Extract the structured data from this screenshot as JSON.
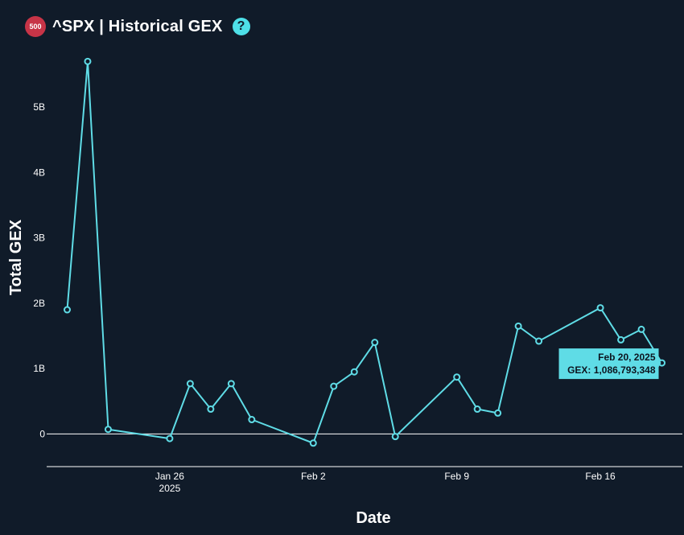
{
  "header": {
    "badge": "500",
    "title": "^SPX | Historical GEX",
    "help": "?"
  },
  "colors": {
    "background": "#101b29",
    "line": "#5fdce6",
    "badge": "#c73447",
    "tooltip": "#5fdce6"
  },
  "chart_data": {
    "type": "line",
    "xlabel": "Date",
    "ylabel": "Total GEX",
    "x_ticks": [
      {
        "date": "2025-01-26",
        "label": "Jan 26",
        "sublabel": "2025"
      },
      {
        "date": "2025-02-02",
        "label": "Feb 2",
        "sublabel": ""
      },
      {
        "date": "2025-02-09",
        "label": "Feb 9",
        "sublabel": ""
      },
      {
        "date": "2025-02-16",
        "label": "Feb 16",
        "sublabel": ""
      }
    ],
    "y_ticks": [
      {
        "value": 0,
        "label": "0"
      },
      {
        "value": 1000000000,
        "label": "1B"
      },
      {
        "value": 2000000000,
        "label": "2B"
      },
      {
        "value": 3000000000,
        "label": "3B"
      },
      {
        "value": 4000000000,
        "label": "4B"
      },
      {
        "value": 5000000000,
        "label": "5B"
      }
    ],
    "x_range": [
      "2025-01-20",
      "2025-02-20"
    ],
    "ylim": [
      -500000000,
      6000000000
    ],
    "series": [
      {
        "points": [
          {
            "x": "2025-01-21",
            "y": 1900000000
          },
          {
            "x": "2025-01-22",
            "y": 5700000000
          },
          {
            "x": "2025-01-23",
            "y": 70000000
          },
          {
            "x": "2025-01-26",
            "y": -70000000
          },
          {
            "x": "2025-01-27",
            "y": 770000000
          },
          {
            "x": "2025-01-28",
            "y": 380000000
          },
          {
            "x": "2025-01-29",
            "y": 770000000
          },
          {
            "x": "2025-01-30",
            "y": 220000000
          },
          {
            "x": "2025-02-02",
            "y": -140000000
          },
          {
            "x": "2025-02-03",
            "y": 730000000
          },
          {
            "x": "2025-02-04",
            "y": 950000000
          },
          {
            "x": "2025-02-05",
            "y": 1400000000
          },
          {
            "x": "2025-02-06",
            "y": -40000000
          },
          {
            "x": "2025-02-09",
            "y": 870000000
          },
          {
            "x": "2025-02-10",
            "y": 380000000
          },
          {
            "x": "2025-02-11",
            "y": 320000000
          },
          {
            "x": "2025-02-12",
            "y": 1650000000
          },
          {
            "x": "2025-02-13",
            "y": 1420000000
          },
          {
            "x": "2025-02-16",
            "y": 1930000000
          },
          {
            "x": "2025-02-17",
            "y": 1440000000
          },
          {
            "x": "2025-02-18",
            "y": 1600000000
          },
          {
            "x": "2025-02-19",
            "y": 1086793348
          }
        ]
      }
    ],
    "tooltip": {
      "line1": "Feb 20, 2025",
      "line2": "GEX: 1,086,793,348"
    },
    "grid": false,
    "legend": "none"
  }
}
